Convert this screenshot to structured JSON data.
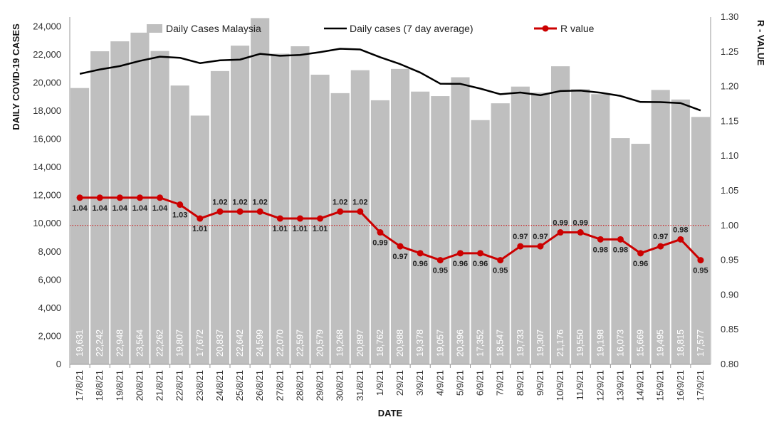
{
  "chart_data": {
    "type": "bar",
    "categories": [
      "17/8/21",
      "18/8/21",
      "19/8/21",
      "20/8/21",
      "21/8/21",
      "22/8/21",
      "23/8/21",
      "24/8/21",
      "25/8/21",
      "26/8/21",
      "27/8/21",
      "28/8/21",
      "29/8/21",
      "30/8/21",
      "31/8/21",
      "1/9/21",
      "2/9/21",
      "3/9/21",
      "4/9/21",
      "5/9/21",
      "6/9/21",
      "7/9/21",
      "8/9/21",
      "9/9/21",
      "10/9/21",
      "11/9/21",
      "12/9/21",
      "13/9/21",
      "14/9/21",
      "15/9/21",
      "16/9/21",
      "17/9/21"
    ],
    "series": [
      {
        "name": "Daily Cases Malaysia",
        "kind": "bar",
        "color": "#bfbfbf",
        "values": [
          19631,
          22242,
          22948,
          23564,
          22262,
          19807,
          17672,
          20837,
          22642,
          24599,
          22070,
          22597,
          20579,
          19268,
          20897,
          18762,
          20988,
          19378,
          19057,
          20396,
          17352,
          18547,
          19733,
          19307,
          21176,
          19550,
          19198,
          16073,
          15669,
          19495,
          18815,
          17577
        ],
        "labels": [
          "19,631",
          "22,242",
          "22,948",
          "23,564",
          "22,262",
          "19,807",
          "17,672",
          "20,837",
          "22,642",
          "24,599",
          "22,070",
          "22,597",
          "20,579",
          "19,268",
          "20,897",
          "18,762",
          "20,988",
          "19,378",
          "19,057",
          "20,396",
          "17,352",
          "18,547",
          "19,733",
          "19,307",
          "21,176",
          "19,550",
          "19,198",
          "16,073",
          "15,669",
          "19,495",
          "18,815",
          "17,577"
        ]
      },
      {
        "name": "Daily cases (7 day average)",
        "kind": "line",
        "color": "#000000",
        "values": [
          20640,
          20950,
          21190,
          21560,
          21860,
          21780,
          21400,
          21600,
          21650,
          22060,
          21920,
          21980,
          22180,
          22420,
          22370,
          21820,
          21330,
          20730,
          19940,
          19930,
          19590,
          19190,
          19310,
          19120,
          19420,
          19450,
          19300,
          19070,
          18640,
          18630,
          18560,
          18040
        ]
      },
      {
        "name": "R value",
        "kind": "line",
        "axis": "right",
        "color": "#cc0000",
        "values": [
          1.04,
          1.04,
          1.04,
          1.04,
          1.04,
          1.03,
          1.01,
          1.02,
          1.02,
          1.02,
          1.01,
          1.01,
          1.01,
          1.02,
          1.02,
          0.99,
          0.97,
          0.96,
          0.95,
          0.96,
          0.96,
          0.95,
          0.97,
          0.97,
          0.99,
          0.99,
          0.98,
          0.98,
          0.96,
          0.97,
          0.98,
          0.95
        ],
        "labels": [
          "1.04",
          "1.04",
          "1.04",
          "1.04",
          "1.04",
          "1.03",
          "1.01",
          "1.02",
          "1.02",
          "1.02",
          "1.01",
          "1.01",
          "1.01",
          "1.02",
          "1.02",
          "0.99",
          "0.97",
          "0.96",
          "0.95",
          "0.96",
          "0.96",
          "0.95",
          "0.97",
          "0.97",
          "0.99",
          "0.99",
          "0.98",
          "0.98",
          "0.96",
          "0.97",
          "0.98",
          "0.95"
        ]
      }
    ],
    "reference_line": {
      "axis": "right",
      "value": 1.0,
      "color": "#cc0000",
      "style": "dotted"
    },
    "xlabel": "DATE",
    "ylabel": "DAILY COVID-19 CASES",
    "y2label": "R - VALUE",
    "ylim": [
      0,
      25000
    ],
    "y2lim": [
      0.8,
      1.3
    ],
    "yticks": [
      0,
      2000,
      4000,
      6000,
      8000,
      10000,
      12000,
      14000,
      16000,
      18000,
      20000,
      22000,
      24000
    ],
    "ytick_labels": [
      "0",
      "2,000",
      "4,000",
      "6,000",
      "8,000",
      "10,000",
      "12,000",
      "14,000",
      "16,000",
      "18,000",
      "20,000",
      "22,000",
      "24,000"
    ],
    "y2ticks": [
      0.8,
      0.85,
      0.9,
      0.95,
      1.0,
      1.05,
      1.1,
      1.15,
      1.2,
      1.25,
      1.3
    ],
    "y2tick_labels": [
      "0.80",
      "0.85",
      "0.90",
      "0.95",
      "1.00",
      "1.05",
      "1.10",
      "1.15",
      "1.20",
      "1.25",
      "1.30"
    ],
    "grid": false,
    "legend_position": "top"
  }
}
